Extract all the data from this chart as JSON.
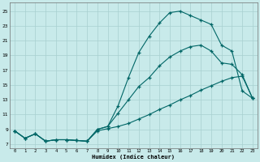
{
  "xlabel": "Humidex (Indice chaleur)",
  "bg_color": "#c8eaea",
  "grid_color": "#a8d0d0",
  "line_color": "#006666",
  "xlim": [
    -0.5,
    23.5
  ],
  "ylim": [
    6.5,
    26.2
  ],
  "xticks": [
    0,
    1,
    2,
    3,
    4,
    5,
    6,
    7,
    8,
    9,
    10,
    11,
    12,
    13,
    14,
    15,
    16,
    17,
    18,
    19,
    20,
    21,
    22,
    23
  ],
  "yticks": [
    7,
    9,
    11,
    13,
    15,
    17,
    19,
    21,
    23,
    25
  ],
  "line1_x": [
    0,
    1,
    2,
    3,
    4,
    5,
    6,
    7,
    8,
    9,
    10,
    11,
    12,
    13,
    14,
    15,
    16,
    17,
    18,
    19,
    20,
    21,
    22,
    23
  ],
  "line1_y": [
    8.8,
    7.8,
    8.4,
    7.4,
    7.6,
    7.6,
    7.5,
    7.4,
    8.8,
    9.1,
    9.4,
    9.8,
    10.4,
    11.0,
    11.7,
    12.3,
    13.0,
    13.6,
    14.3,
    14.9,
    15.5,
    16.0,
    16.2,
    13.2
  ],
  "line2_x": [
    0,
    1,
    2,
    3,
    4,
    5,
    6,
    7,
    8,
    9,
    10,
    11,
    12,
    13,
    14,
    15,
    16,
    17,
    18,
    19,
    20,
    21,
    22,
    23
  ],
  "line2_y": [
    8.8,
    7.8,
    8.4,
    7.4,
    7.6,
    7.6,
    7.5,
    7.4,
    9.0,
    9.4,
    11.2,
    13.0,
    14.8,
    16.0,
    17.6,
    18.8,
    19.6,
    20.2,
    20.4,
    19.6,
    18.0,
    17.8,
    16.4,
    13.2
  ],
  "line3_x": [
    0,
    1,
    2,
    3,
    4,
    5,
    6,
    7,
    8,
    9,
    10,
    11,
    12,
    13,
    14,
    15,
    16,
    17,
    18,
    19,
    20,
    21,
    22,
    23
  ],
  "line3_y": [
    8.8,
    7.8,
    8.4,
    7.4,
    7.6,
    7.6,
    7.5,
    7.4,
    9.0,
    9.4,
    12.2,
    16.0,
    19.4,
    21.6,
    23.4,
    24.8,
    25.0,
    24.4,
    23.8,
    23.2,
    20.4,
    19.6,
    14.2,
    13.2
  ]
}
